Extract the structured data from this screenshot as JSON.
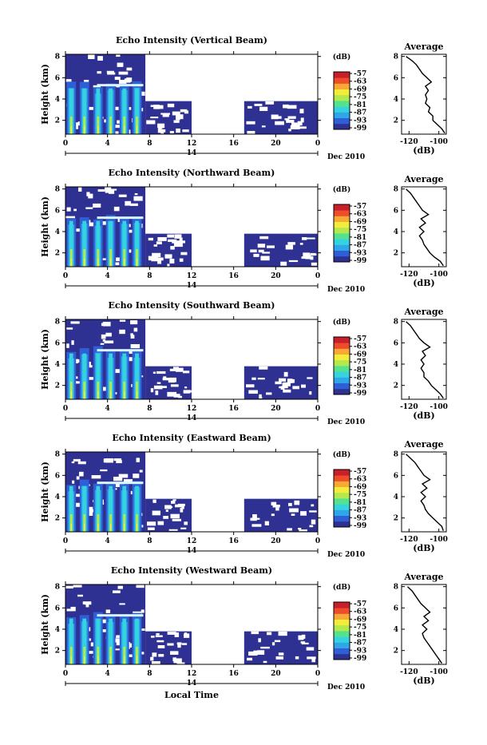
{
  "figure": {
    "date_label": "Dec 2010",
    "day_label": "14",
    "xlabel_bottom": "Local Time",
    "colorbar_unit": "(dB)",
    "colorbar_ticks": [
      "-57",
      "-63",
      "-69",
      "-75",
      "-81",
      "-87",
      "-93",
      "-99"
    ],
    "colors": [
      "#2e3192",
      "#2f5fd6",
      "#2fa6e8",
      "#35d3e0",
      "#54e38c",
      "#b3e84f",
      "#f3ec3a",
      "#f7a835",
      "#ef4c2b",
      "#c8202b"
    ]
  },
  "chart_data": [
    {
      "type": "heatmap",
      "title": "Echo Intensity (Vertical Beam)",
      "xlabel": "",
      "ylabel": "Height (km)",
      "x_ticks": [
        "0",
        "4",
        "8",
        "12",
        "16",
        "20",
        "0"
      ],
      "y_ticks": [
        "2",
        "4",
        "6",
        "8"
      ],
      "xlim": [
        0,
        24
      ],
      "ylim": [
        0.7,
        8.2
      ],
      "colorbar": {
        "label": "(dB)",
        "ticks": [
          -57,
          -63,
          -69,
          -75,
          -81,
          -87,
          -93,
          -99
        ],
        "range": [
          -99,
          -57
        ]
      },
      "echo_regions": [
        {
          "start_hour": 0,
          "end_hour": 7.6,
          "top_km": 8.2,
          "level": "weak"
        },
        {
          "start_hour": 7.6,
          "end_hour": 12,
          "top_km": 3.8,
          "level": "weak"
        },
        {
          "start_hour": 17,
          "end_hour": 24,
          "top_km": 3.8,
          "level": "weak"
        },
        {
          "start_hour": 0,
          "end_hour": 7.6,
          "top_km": 5.7,
          "level": "strong",
          "bright_layer_km": 5.3
        }
      ],
      "average_profile": {
        "title": "Average",
        "xlabel": "(dB)",
        "xlim": [
          -125,
          -95
        ],
        "ylim": [
          0.7,
          8.2
        ],
        "x_ticks": [
          "-120",
          "-100"
        ],
        "y_ticks": [
          "2",
          "4",
          "6",
          "8"
        ],
        "height_km": [
          0.8,
          1.2,
          1.6,
          2.0,
          2.4,
          2.8,
          3.2,
          3.6,
          4.0,
          4.4,
          4.8,
          5.2,
          5.6,
          6.0,
          6.4,
          6.8,
          7.2,
          7.6,
          8.0
        ],
        "db": [
          -96,
          -98,
          -101,
          -104,
          -104,
          -107,
          -106,
          -109,
          -108,
          -109,
          -107,
          -109,
          -105,
          -108,
          -111,
          -113,
          -115,
          -118,
          -122
        ]
      }
    },
    {
      "type": "heatmap",
      "title": "Echo Intensity (Northward Beam)",
      "xlabel": "",
      "ylabel": "Height (km)",
      "x_ticks": [
        "0",
        "4",
        "8",
        "12",
        "16",
        "20",
        "0"
      ],
      "y_ticks": [
        "2",
        "4",
        "6",
        "8"
      ],
      "xlim": [
        0,
        24
      ],
      "ylim": [
        0.7,
        8.2
      ],
      "colorbar": {
        "label": "(dB)",
        "ticks": [
          -57,
          -63,
          -69,
          -75,
          -81,
          -87,
          -93,
          -99
        ],
        "range": [
          -99,
          -57
        ]
      },
      "echo_regions": [
        {
          "start_hour": 0,
          "end_hour": 7.6,
          "top_km": 8.2,
          "level": "weak"
        },
        {
          "start_hour": 7.6,
          "end_hour": 12,
          "top_km": 3.8,
          "level": "weak"
        },
        {
          "start_hour": 17,
          "end_hour": 24,
          "top_km": 3.8,
          "level": "weak"
        },
        {
          "start_hour": 0,
          "end_hour": 7.6,
          "top_km": 5.7,
          "level": "strong",
          "bright_layer_km": 5.3
        }
      ],
      "average_profile": {
        "title": "Average",
        "xlabel": "(dB)",
        "xlim": [
          -125,
          -95
        ],
        "ylim": [
          0.7,
          8.2
        ],
        "x_ticks": [
          "-120",
          "-100"
        ],
        "y_ticks": [
          "2",
          "4",
          "6",
          "8"
        ],
        "height_km": [
          0.8,
          1.2,
          1.6,
          2.0,
          2.4,
          2.8,
          3.2,
          3.6,
          4.0,
          4.4,
          4.8,
          5.2,
          5.6,
          6.0,
          6.4,
          6.8,
          7.2,
          7.6,
          8.0
        ],
        "db": [
          -97,
          -99,
          -103,
          -106,
          -108,
          -110,
          -111,
          -113,
          -110,
          -113,
          -109,
          -112,
          -107,
          -111,
          -113,
          -115,
          -117,
          -119,
          -122
        ]
      }
    },
    {
      "type": "heatmap",
      "title": "Echo Intensity (Southward Beam)",
      "xlabel": "",
      "ylabel": "Height (km)",
      "x_ticks": [
        "0",
        "4",
        "8",
        "12",
        "16",
        "20",
        "0"
      ],
      "y_ticks": [
        "2",
        "4",
        "6",
        "8"
      ],
      "xlim": [
        0,
        24
      ],
      "ylim": [
        0.7,
        8.2
      ],
      "colorbar": {
        "label": "(dB)",
        "ticks": [
          -57,
          -63,
          -69,
          -75,
          -81,
          -87,
          -93,
          -99
        ],
        "range": [
          -99,
          -57
        ]
      },
      "echo_regions": [
        {
          "start_hour": 0,
          "end_hour": 7.6,
          "top_km": 8.2,
          "level": "weak"
        },
        {
          "start_hour": 7.6,
          "end_hour": 12,
          "top_km": 3.8,
          "level": "weak"
        },
        {
          "start_hour": 17,
          "end_hour": 24,
          "top_km": 3.8,
          "level": "weak"
        },
        {
          "start_hour": 0,
          "end_hour": 7.6,
          "top_km": 5.7,
          "level": "strong",
          "bright_layer_km": 5.3
        }
      ],
      "average_profile": {
        "title": "Average",
        "xlabel": "(dB)",
        "xlim": [
          -125,
          -95
        ],
        "ylim": [
          0.7,
          8.2
        ],
        "x_ticks": [
          "-120",
          "-100"
        ],
        "y_ticks": [
          "2",
          "4",
          "6",
          "8"
        ],
        "height_km": [
          0.8,
          1.2,
          1.6,
          2.0,
          2.4,
          2.8,
          3.2,
          3.6,
          4.0,
          4.4,
          4.8,
          5.2,
          5.6,
          6.0,
          6.4,
          6.8,
          7.2,
          7.6,
          8.0
        ],
        "db": [
          -97,
          -99,
          -102,
          -105,
          -107,
          -110,
          -110,
          -112,
          -110,
          -112,
          -109,
          -111,
          -106,
          -110,
          -113,
          -115,
          -117,
          -119,
          -122
        ]
      }
    },
    {
      "type": "heatmap",
      "title": "Echo Intensity (Eastward Beam)",
      "xlabel": "",
      "ylabel": "Height (km)",
      "x_ticks": [
        "0",
        "4",
        "8",
        "12",
        "16",
        "20",
        "0"
      ],
      "y_ticks": [
        "2",
        "4",
        "6",
        "8"
      ],
      "xlim": [
        0,
        24
      ],
      "ylim": [
        0.7,
        8.2
      ],
      "colorbar": {
        "label": "(dB)",
        "ticks": [
          -57,
          -63,
          -69,
          -75,
          -81,
          -87,
          -93,
          -99
        ],
        "range": [
          -99,
          -57
        ]
      },
      "echo_regions": [
        {
          "start_hour": 0,
          "end_hour": 7.6,
          "top_km": 8.2,
          "level": "weak"
        },
        {
          "start_hour": 7.6,
          "end_hour": 12,
          "top_km": 3.8,
          "level": "weak"
        },
        {
          "start_hour": 17,
          "end_hour": 24,
          "top_km": 3.8,
          "level": "weak"
        },
        {
          "start_hour": 0,
          "end_hour": 7.6,
          "top_km": 5.7,
          "level": "strong",
          "bright_layer_km": 5.3
        }
      ],
      "average_profile": {
        "title": "Average",
        "xlabel": "(dB)",
        "xlim": [
          -125,
          -95
        ],
        "ylim": [
          0.7,
          8.2
        ],
        "x_ticks": [
          "-120",
          "-100"
        ],
        "y_ticks": [
          "2",
          "4",
          "6",
          "8"
        ],
        "height_km": [
          0.8,
          1.2,
          1.6,
          2.0,
          2.4,
          2.8,
          3.2,
          3.6,
          4.0,
          4.4,
          4.8,
          5.2,
          5.6,
          6.0,
          6.4,
          6.8,
          7.2,
          7.6,
          8.0
        ],
        "db": [
          -97,
          -98,
          -101,
          -104,
          -107,
          -109,
          -110,
          -112,
          -109,
          -112,
          -108,
          -111,
          -106,
          -110,
          -112,
          -114,
          -116,
          -119,
          -122
        ]
      }
    },
    {
      "type": "heatmap",
      "title": "Echo Intensity (Westward Beam)",
      "xlabel": "Local Time",
      "ylabel": "Height (km)",
      "x_ticks": [
        "0",
        "4",
        "8",
        "12",
        "16",
        "20",
        "0"
      ],
      "y_ticks": [
        "2",
        "4",
        "6",
        "8"
      ],
      "xlim": [
        0,
        24
      ],
      "ylim": [
        0.7,
        8.2
      ],
      "colorbar": {
        "label": "(dB)",
        "ticks": [
          -57,
          -63,
          -69,
          -75,
          -81,
          -87,
          -93,
          -99
        ],
        "range": [
          -99,
          -57
        ]
      },
      "echo_regions": [
        {
          "start_hour": 0,
          "end_hour": 7.6,
          "top_km": 8.2,
          "level": "weak"
        },
        {
          "start_hour": 7.6,
          "end_hour": 12,
          "top_km": 3.8,
          "level": "weak"
        },
        {
          "start_hour": 17,
          "end_hour": 24,
          "top_km": 3.8,
          "level": "weak"
        },
        {
          "start_hour": 0,
          "end_hour": 7.6,
          "top_km": 5.7,
          "level": "strong",
          "bright_layer_km": 5.3
        }
      ],
      "average_profile": {
        "title": "Average",
        "xlabel": "(dB)",
        "xlim": [
          -125,
          -95
        ],
        "ylim": [
          0.7,
          8.2
        ],
        "x_ticks": [
          "-120",
          "-100"
        ],
        "y_ticks": [
          "2",
          "4",
          "6",
          "8"
        ],
        "height_km": [
          0.8,
          1.2,
          1.6,
          2.0,
          2.4,
          2.8,
          3.2,
          3.6,
          4.0,
          4.4,
          4.8,
          5.2,
          5.6,
          6.0,
          6.4,
          6.8,
          7.2,
          7.6,
          8.0
        ],
        "db": [
          -98,
          -100,
          -102,
          -104,
          -106,
          -108,
          -110,
          -111,
          -108,
          -111,
          -107,
          -110,
          -106,
          -109,
          -112,
          -114,
          -116,
          -118,
          -121
        ]
      }
    }
  ]
}
